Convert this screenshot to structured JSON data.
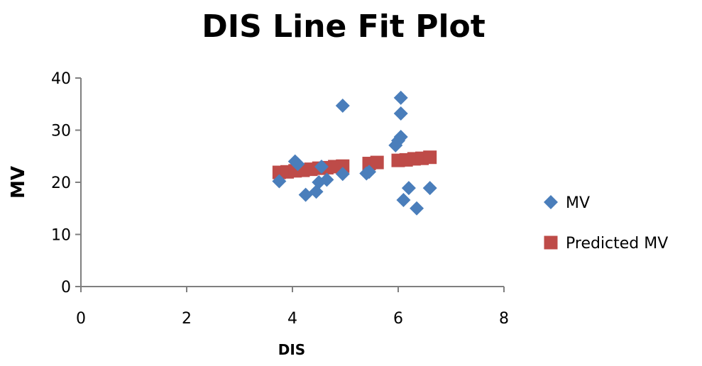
{
  "chart_data": {
    "type": "scatter",
    "title": "DIS Line Fit  Plot",
    "xlabel": "DIS",
    "ylabel": "MV",
    "xlim": [
      0,
      8
    ],
    "ylim": [
      0,
      40
    ],
    "x_ticks": [
      0,
      2,
      4,
      6,
      8
    ],
    "y_ticks": [
      0,
      10,
      20,
      30,
      40
    ],
    "grid": false,
    "legend_position": "right",
    "series": [
      {
        "name": "MV",
        "marker": "diamond",
        "color": "#4a7ebb",
        "points": [
          {
            "x": 3.75,
            "y": 20.2
          },
          {
            "x": 4.05,
            "y": 24.0
          },
          {
            "x": 4.1,
            "y": 23.5
          },
          {
            "x": 4.25,
            "y": 17.6
          },
          {
            "x": 4.45,
            "y": 18.2
          },
          {
            "x": 4.5,
            "y": 20.0
          },
          {
            "x": 4.55,
            "y": 23.0
          },
          {
            "x": 4.65,
            "y": 20.5
          },
          {
            "x": 4.95,
            "y": 21.6
          },
          {
            "x": 4.95,
            "y": 34.7
          },
          {
            "x": 5.4,
            "y": 21.7
          },
          {
            "x": 5.45,
            "y": 22.0
          },
          {
            "x": 5.95,
            "y": 27.1
          },
          {
            "x": 6.0,
            "y": 28.0
          },
          {
            "x": 6.05,
            "y": 28.7
          },
          {
            "x": 6.05,
            "y": 33.2
          },
          {
            "x": 6.05,
            "y": 36.2
          },
          {
            "x": 6.1,
            "y": 16.6
          },
          {
            "x": 6.2,
            "y": 18.9
          },
          {
            "x": 6.35,
            "y": 15.0
          },
          {
            "x": 6.6,
            "y": 18.9
          }
        ]
      },
      {
        "name": "Predicted MV",
        "marker": "square",
        "color": "#be4b48",
        "points": [
          {
            "x": 3.75,
            "y": 21.9
          },
          {
            "x": 3.9,
            "y": 22.0
          },
          {
            "x": 4.05,
            "y": 22.2
          },
          {
            "x": 4.2,
            "y": 22.3
          },
          {
            "x": 4.35,
            "y": 22.5
          },
          {
            "x": 4.5,
            "y": 22.7
          },
          {
            "x": 4.65,
            "y": 22.8
          },
          {
            "x": 4.8,
            "y": 23.0
          },
          {
            "x": 4.95,
            "y": 23.1
          },
          {
            "x": 5.45,
            "y": 23.6
          },
          {
            "x": 5.6,
            "y": 23.8
          },
          {
            "x": 6.0,
            "y": 24.2
          },
          {
            "x": 6.15,
            "y": 24.3
          },
          {
            "x": 6.3,
            "y": 24.5
          },
          {
            "x": 6.45,
            "y": 24.6
          },
          {
            "x": 6.6,
            "y": 24.8
          }
        ]
      }
    ]
  }
}
